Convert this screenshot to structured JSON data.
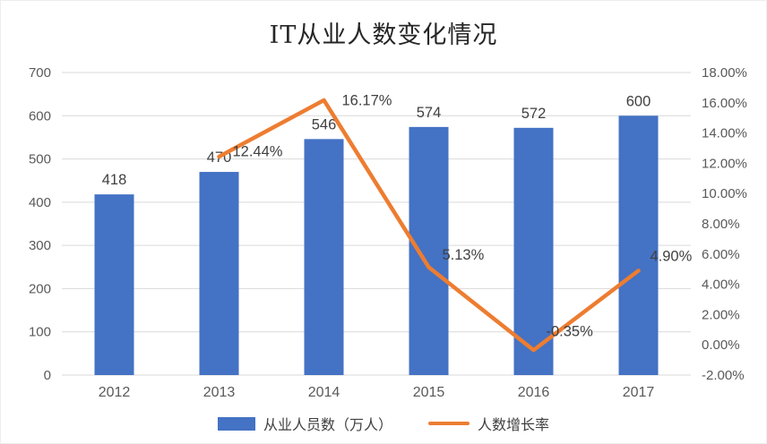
{
  "chart_data": {
    "type": "bar",
    "subtype": "combo-bar-line",
    "title": "IT从业人数变化情况",
    "categories": [
      "2012",
      "2013",
      "2014",
      "2015",
      "2016",
      "2017"
    ],
    "series": [
      {
        "name": "从业人员数（万人）",
        "type": "bar",
        "axis": "left",
        "color": "#4472C4",
        "values": [
          418,
          470,
          546,
          574,
          572,
          600
        ],
        "labels": [
          "418",
          "470",
          "546",
          "574",
          "572",
          "600"
        ]
      },
      {
        "name": "人数增长率",
        "type": "line",
        "axis": "right",
        "color": "#ED7D31",
        "values": [
          null,
          12.44,
          16.17,
          5.13,
          -0.35,
          4.9
        ],
        "labels": [
          "",
          "12.44%",
          "16.17%",
          "5.13%",
          "-0.35%",
          "4.90%"
        ]
      }
    ],
    "left_axis": {
      "min": 0,
      "max": 700,
      "step": 100,
      "ticks": [
        "700",
        "600",
        "500",
        "400",
        "300",
        "200",
        "100",
        "0"
      ]
    },
    "right_axis": {
      "min": -2,
      "max": 18,
      "step": 2,
      "ticks": [
        "18.00%",
        "16.00%",
        "14.00%",
        "12.00%",
        "10.00%",
        "8.00%",
        "6.00%",
        "4.00%",
        "2.00%",
        "0.00%",
        "-2.00%"
      ]
    },
    "grid": true,
    "gridline_color": "#d9d9d9",
    "text_color": "#404040",
    "tick_color": "#595959",
    "legend_position": "bottom"
  }
}
